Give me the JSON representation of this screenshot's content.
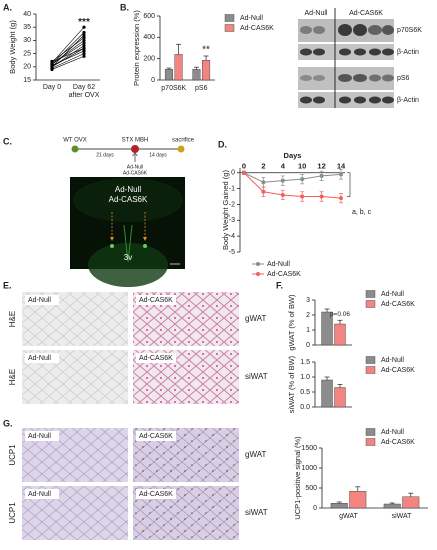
{
  "panels": {
    "labels": [
      "A.",
      "B.",
      "C.",
      "D.",
      "E.",
      "F.",
      "G."
    ],
    "blot": {
      "lanes": [
        "Ad-Null",
        "Ad-CAS6K"
      ],
      "bands": [
        "p70S6K",
        "β-Actin",
        "pS6",
        "β-Actin"
      ]
    },
    "timeline": {
      "steps": [
        "WT OVX",
        "STX MBH",
        "sacrifice"
      ],
      "intervals": [
        "21 days",
        "14 days"
      ],
      "injection": [
        "Ad-Null",
        "Ad-CAS6K"
      ],
      "image_labels": [
        "Ad-Null",
        "Ad-CAS6K",
        "3v"
      ]
    },
    "histology_he": {
      "groups": [
        "Ad-Null",
        "Ad-CAS6K"
      ],
      "rows": [
        {
          "stain": "H&E",
          "tissue": "gWAT"
        },
        {
          "stain": "H&E",
          "tissue": "siWAT"
        }
      ]
    },
    "histology_ucp1": {
      "groups": [
        "Ad-Null",
        "Ad-CAS6K"
      ],
      "rows": [
        {
          "stain": "UCP1",
          "tissue": "gWAT"
        },
        {
          "stain": "UCP1",
          "tissue": "siWAT"
        }
      ]
    }
  },
  "chart_data": [
    {
      "type": "paired",
      "ylabel": "Body Weight (g)",
      "categories": [
        "Day 0",
        "Day 62\nafter OVX"
      ],
      "color": "#000000",
      "series": [
        {
          "values": [
            20,
            27
          ]
        },
        {
          "values": [
            21,
            30
          ]
        },
        {
          "values": [
            19.5,
            25
          ]
        },
        {
          "values": [
            21,
            33
          ]
        },
        {
          "values": [
            20,
            28
          ]
        },
        {
          "values": [
            22,
            31
          ]
        },
        {
          "values": [
            20.5,
            26
          ]
        },
        {
          "values": [
            19,
            24
          ]
        },
        {
          "values": [
            21,
            29
          ]
        },
        {
          "values": [
            20,
            32
          ]
        },
        {
          "values": [
            22,
            27
          ]
        },
        {
          "values": [
            21.5,
            35
          ]
        }
      ],
      "ylim": [
        15,
        40
      ],
      "yticks": [
        15,
        20,
        25,
        30,
        35,
        40
      ],
      "annotation": "***"
    },
    {
      "type": "bar",
      "ylabel": "Protein expression (%)",
      "categories": [
        "p70S6K",
        "pS6"
      ],
      "series": [
        {
          "name": "Ad-Null",
          "color": "#8c8c8c",
          "values": [
            100,
            100
          ],
          "errors": [
            12,
            20
          ]
        },
        {
          "name": "Ad-CAS6K",
          "color": "#f28482",
          "values": [
            240,
            185
          ],
          "errors": [
            95,
            40
          ]
        }
      ],
      "ylim": [
        0,
        600
      ],
      "yticks": [
        0,
        200,
        400,
        600
      ],
      "annotation": "**",
      "legend": true
    },
    {
      "type": "line",
      "ylabel": "Body Weight Gained (g)",
      "xlabel": "Days",
      "categories": [
        "0",
        "2",
        "4",
        "10",
        "12",
        "14"
      ],
      "series": [
        {
          "name": "Ad-Null",
          "color": "#8c8c8c",
          "values": [
            0,
            -0.6,
            -0.5,
            -0.4,
            -0.2,
            -0.1
          ],
          "errors": [
            0.1,
            0.3,
            0.3,
            0.3,
            0.3,
            0.3
          ]
        },
        {
          "name": "Ad-CAS6K",
          "color": "#f0605d",
          "values": [
            0,
            -1.2,
            -1.4,
            -1.5,
            -1.5,
            -1.6
          ],
          "errors": [
            0.1,
            0.3,
            0.3,
            0.3,
            0.3,
            0.3
          ]
        }
      ],
      "ylim": [
        -5,
        0.3
      ],
      "yticks": [
        -5,
        -4,
        -3,
        -2,
        -1,
        0
      ],
      "annotation": "a, b, c",
      "legend": true
    },
    {
      "type": "bar",
      "ylabel": "gWAT (% of BW)",
      "series": [
        {
          "name": "Ad-Null",
          "color": "#8c8c8c",
          "values": [
            2.2
          ],
          "errors": [
            0.2
          ]
        },
        {
          "name": "Ad-CAS6K",
          "color": "#f28482",
          "values": [
            1.4
          ],
          "errors": [
            0.25
          ]
        }
      ],
      "ylim": [
        0,
        3
      ],
      "yticks": [
        0,
        1,
        2,
        3
      ],
      "annotation": "p=0.06",
      "legend": true
    },
    {
      "type": "bar",
      "ylabel": "siWAT (% of BW)",
      "series": [
        {
          "name": "Ad-Null",
          "color": "#8c8c8c",
          "values": [
            0.9
          ],
          "errors": [
            0.1
          ]
        },
        {
          "name": "Ad-CAS6K",
          "color": "#f28482",
          "values": [
            0.65
          ],
          "errors": [
            0.1
          ]
        }
      ],
      "ylim": [
        0,
        1.5
      ],
      "yticks": [
        {
          "value": 0,
          "label": "0.0"
        },
        0.5,
        {
          "value": 1,
          "label": "1.0"
        },
        1.5
      ],
      "legend": true
    },
    {
      "type": "bar",
      "ylabel": "UCP1-positive signal (%)",
      "categories": [
        "gWAT",
        "siWAT"
      ],
      "series": [
        {
          "name": "Ad-Null",
          "color": "#8c8c8c",
          "values": [
            120,
            100
          ],
          "errors": [
            30,
            25
          ]
        },
        {
          "name": "Ad-CAS6K",
          "color": "#f28482",
          "values": [
            420,
            280
          ],
          "errors": [
            110,
            90
          ]
        }
      ],
      "ylim": [
        0,
        1500
      ],
      "yticks": [
        0,
        500,
        1000,
        1500
      ],
      "legend": true
    }
  ]
}
